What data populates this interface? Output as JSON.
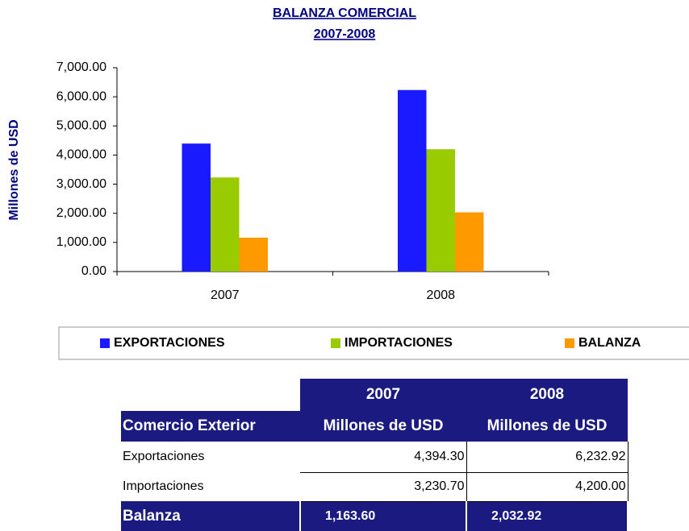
{
  "chart_data": {
    "type": "bar",
    "title": "BALANZA COMERCIAL",
    "subtitle": "2007-2008",
    "y_label": "Millones de USD",
    "categories": [
      "2007",
      "2008"
    ],
    "series": [
      {
        "name": "EXPORTACIONES",
        "color": "#1a1aff",
        "values": [
          4394.3,
          6232.92
        ]
      },
      {
        "name": "IMPORTACIONES",
        "color": "#99cc00",
        "values": [
          3230.7,
          4200.0
        ]
      },
      {
        "name": "BALANZA",
        "color": "#ff9900",
        "values": [
          1163.6,
          2032.92
        ]
      }
    ],
    "ylim": [
      0,
      7000
    ],
    "yticks": [
      {
        "value": 0,
        "label": "0.00"
      },
      {
        "value": 1000,
        "label": "1,000.00"
      },
      {
        "value": 2000,
        "label": "2,000.00"
      },
      {
        "value": 3000,
        "label": "3,000.00"
      },
      {
        "value": 4000,
        "label": "4,000.00"
      },
      {
        "value": 5000,
        "label": "5,000.00"
      },
      {
        "value": 6000,
        "label": "6,000.00"
      },
      {
        "value": 7000,
        "label": "7,000.00"
      }
    ],
    "grid": false,
    "legend": "bottom"
  },
  "table": {
    "header_years": [
      "2007",
      "2008"
    ],
    "header": [
      "Comercio Exterior",
      "Millones de USD",
      "Millones de USD"
    ],
    "rows": [
      [
        "Exportaciones",
        "4,394.30",
        "6,232.92"
      ],
      [
        "Importaciones",
        "3,230.70",
        "4,200.00"
      ]
    ],
    "total": [
      "Balanza",
      "1,163.60",
      "2,032.92"
    ]
  }
}
